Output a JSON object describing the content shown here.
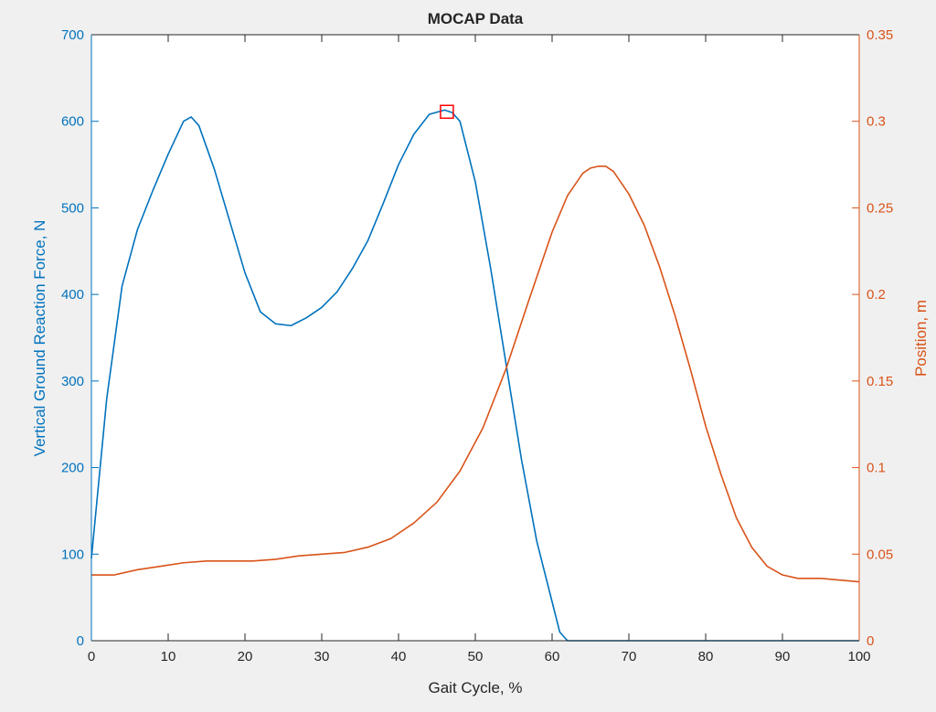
{
  "chart_data": {
    "type": "line",
    "title": "MOCAP Data",
    "xlabel": "Gait Cycle, %",
    "ylabel_left": "Vertical Ground Reaction Force, N",
    "ylabel_right": "Position, m",
    "xlim": [
      0,
      100
    ],
    "ylim_left": [
      0,
      700
    ],
    "ylim_right": [
      0,
      0.35
    ],
    "x_ticks": [
      0,
      10,
      20,
      30,
      40,
      50,
      60,
      70,
      80,
      90,
      100
    ],
    "y_ticks_left": [
      0,
      100,
      200,
      300,
      400,
      500,
      600,
      700
    ],
    "y_ticks_right": [
      "0",
      "0.05",
      "0.1",
      "0.15",
      "0.2",
      "0.25",
      "0.3",
      "0.35"
    ],
    "grid": false,
    "colors": {
      "left": "#0072bd",
      "right": "#d95319",
      "marker": "#ff0000"
    },
    "series": [
      {
        "axis": "left",
        "x": [
          0,
          2,
          4,
          6,
          8,
          10,
          12,
          13,
          14,
          16,
          18,
          20,
          22,
          24,
          26,
          28,
          30,
          32,
          34,
          36,
          38,
          40,
          42,
          44,
          46,
          47,
          48,
          50,
          52,
          54,
          56,
          58,
          60,
          61,
          62,
          70,
          80,
          90,
          100
        ],
        "values": [
          95,
          280,
          410,
          475,
          520,
          562,
          600,
          605,
          595,
          545,
          485,
          425,
          380,
          366,
          364,
          373,
          385,
          403,
          430,
          462,
          505,
          550,
          585,
          608,
          613,
          610,
          600,
          530,
          430,
          320,
          210,
          115,
          45,
          10,
          0,
          0,
          0,
          0,
          0
        ]
      },
      {
        "axis": "right",
        "x": [
          0,
          3,
          6,
          9,
          12,
          15,
          18,
          21,
          24,
          27,
          30,
          33,
          36,
          39,
          42,
          45,
          48,
          51,
          54,
          57,
          60,
          62,
          64,
          65,
          66,
          67,
          68,
          70,
          72,
          74,
          76,
          78,
          80,
          82,
          84,
          86,
          88,
          90,
          92,
          95,
          100
        ],
        "values": [
          0.038,
          0.038,
          0.041,
          0.043,
          0.045,
          0.046,
          0.046,
          0.046,
          0.047,
          0.049,
          0.05,
          0.051,
          0.054,
          0.059,
          0.068,
          0.08,
          0.098,
          0.123,
          0.157,
          0.197,
          0.236,
          0.257,
          0.27,
          0.273,
          0.274,
          0.274,
          0.271,
          0.258,
          0.24,
          0.216,
          0.188,
          0.157,
          0.124,
          0.096,
          0.071,
          0.054,
          0.043,
          0.038,
          0.036,
          0.036,
          0.034
        ]
      }
    ],
    "marker": {
      "x": 46.3,
      "y": 611,
      "shape": "square"
    }
  }
}
